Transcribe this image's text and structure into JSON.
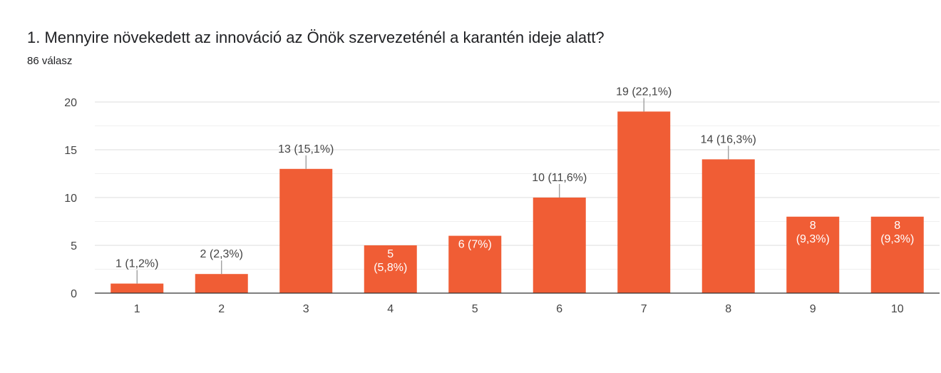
{
  "header": {
    "title": "1. Mennyire növekedett az innováció az Önök szervezeténél a karantén ideje alatt?",
    "response_count": "86 válasz"
  },
  "colors": {
    "bar": "#f05d35",
    "label_outside": "#444444",
    "label_inside": "#ffffff",
    "gridline": "#e6e6e6",
    "axis": "#333333",
    "leader": "#999999"
  },
  "chart_data": {
    "type": "bar",
    "categories": [
      "1",
      "2",
      "3",
      "4",
      "5",
      "6",
      "7",
      "8",
      "9",
      "10"
    ],
    "values": [
      1,
      2,
      13,
      5,
      6,
      10,
      19,
      14,
      8,
      8
    ],
    "data_labels": [
      [
        "1 (1,2%)"
      ],
      [
        "2 (2,3%)"
      ],
      [
        "13 (15,1%)"
      ],
      [
        "5",
        "(5,8%)"
      ],
      [
        "6 (7%)"
      ],
      [
        "10 (11,6%)"
      ],
      [
        "19 (22,1%)"
      ],
      [
        "14 (16,3%)"
      ],
      [
        "8",
        "(9,3%)"
      ],
      [
        "8",
        "(9,3%)"
      ]
    ],
    "label_inside": [
      false,
      false,
      false,
      true,
      true,
      false,
      false,
      false,
      true,
      true
    ],
    "y_ticks": [
      "0",
      "5",
      "10",
      "15",
      "20"
    ],
    "ylim": [
      0,
      20
    ],
    "grid": true,
    "title": "1. Mennyire növekedett az innováció az Önök szervezeténél a karantén ideje alatt?",
    "xlabel": "",
    "ylabel": ""
  }
}
